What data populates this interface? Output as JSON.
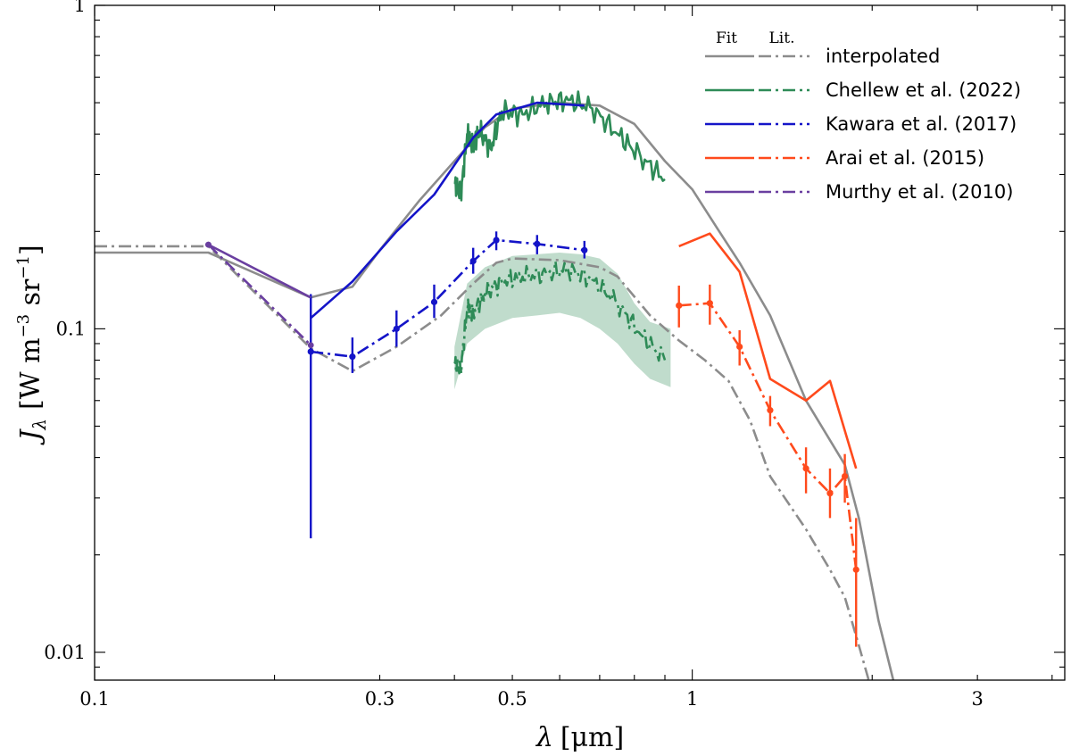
{
  "chart_data": {
    "type": "line",
    "xscale": "log",
    "yscale": "log",
    "xlim": [
      0.1,
      4.2
    ],
    "ylim": [
      0.0082,
      1.0
    ],
    "xlabel_var": "λ",
    "xlabel_unit": "[μm]",
    "ylabel_var": "J",
    "ylabel_sub": "λ",
    "ylabel_unit": "[W m",
    "ylabel_exp1": "−3",
    "ylabel_mid": " sr",
    "ylabel_exp2": "−1",
    "ylabel_end": "]",
    "x_ticks": [
      {
        "value": 0.1,
        "label": "0.1"
      },
      {
        "value": 0.3,
        "label": "0.3"
      },
      {
        "value": 0.5,
        "label": "0.5"
      },
      {
        "value": 1,
        "label": "1"
      },
      {
        "value": 3,
        "label": "3"
      }
    ],
    "y_ticks": [
      {
        "value": 0.01,
        "label": "0.01"
      },
      {
        "value": 0.1,
        "label": "0.1"
      },
      {
        "value": 1,
        "label": "1"
      }
    ],
    "legend": {
      "header_fit": "Fit",
      "header_lit": "Lit.",
      "placement": "top-right",
      "entries": [
        {
          "label": "interpolated",
          "color": "#8c8c8c"
        },
        {
          "label": "Chellew et al. (2022)",
          "color": "#2e8b57"
        },
        {
          "label": "Kawara et al. (2017)",
          "color": "#1414c8"
        },
        {
          "label": "Arai et al. (2015)",
          "color": "#ff4a1c"
        },
        {
          "label": "Murthy et al. (2010)",
          "color": "#6a3fa0"
        }
      ]
    },
    "series": [
      {
        "name": "interpolated (fit)",
        "color": "#8c8c8c",
        "style": "solid",
        "x": [
          0.1,
          0.155,
          0.23,
          0.27,
          0.3,
          0.35,
          0.4,
          0.45,
          0.5,
          0.6,
          0.7,
          0.8,
          0.9,
          1.0,
          1.1,
          1.2,
          1.35,
          1.55,
          1.8,
          1.9,
          2.05,
          2.2
        ],
        "y": [
          0.172,
          0.172,
          0.125,
          0.135,
          0.175,
          0.25,
          0.33,
          0.42,
          0.48,
          0.5,
          0.49,
          0.43,
          0.33,
          0.27,
          0.205,
          0.16,
          0.11,
          0.06,
          0.038,
          0.026,
          0.0125,
          0.0074
        ]
      },
      {
        "name": "interpolated (lit.)",
        "color": "#8c8c8c",
        "style": "dashdot",
        "x": [
          0.1,
          0.155,
          0.23,
          0.27,
          0.32,
          0.38,
          0.43,
          0.47,
          0.5,
          0.6,
          0.7,
          0.75,
          0.85,
          0.95,
          1.05,
          1.15,
          1.25,
          1.35,
          1.55,
          1.7,
          1.8,
          1.9,
          2.05
        ],
        "y": [
          0.18,
          0.18,
          0.087,
          0.074,
          0.088,
          0.11,
          0.138,
          0.16,
          0.165,
          0.163,
          0.155,
          0.145,
          0.11,
          0.092,
          0.08,
          0.069,
          0.052,
          0.035,
          0.024,
          0.018,
          0.0148,
          0.0105,
          0.0064
        ]
      },
      {
        "name": "Chellew et al. (2022) fit",
        "color": "#2e8b57",
        "style": "solid",
        "jitter": 0.04,
        "x": [
          0.4,
          0.41,
          0.42,
          0.43,
          0.44,
          0.46,
          0.48,
          0.52,
          0.57,
          0.62,
          0.68,
          0.75,
          0.82,
          0.9
        ],
        "y": [
          0.28,
          0.26,
          0.4,
          0.37,
          0.41,
          0.36,
          0.47,
          0.46,
          0.5,
          0.51,
          0.48,
          0.4,
          0.34,
          0.29
        ]
      },
      {
        "name": "Chellew et al. (2022) lit.",
        "color": "#2e8b57",
        "style": "dashdot",
        "jitter": 0.035,
        "x": [
          0.4,
          0.41,
          0.42,
          0.43,
          0.45,
          0.48,
          0.52,
          0.57,
          0.62,
          0.68,
          0.75,
          0.82,
          0.9
        ],
        "y": [
          0.078,
          0.075,
          0.115,
          0.112,
          0.128,
          0.14,
          0.145,
          0.148,
          0.152,
          0.142,
          0.12,
          0.096,
          0.08
        ]
      },
      {
        "name": "Kawara et al. (2017) fit",
        "color": "#1414c8",
        "style": "solid",
        "x": [
          0.23,
          0.27,
          0.32,
          0.37,
          0.43,
          0.47,
          0.55,
          0.66
        ],
        "y": [
          0.108,
          0.14,
          0.2,
          0.26,
          0.39,
          0.46,
          0.5,
          0.49
        ]
      },
      {
        "name": "Kawara et al. (2017) lit.",
        "color": "#1414c8",
        "style": "dashdot",
        "x": [
          0.23,
          0.27,
          0.32,
          0.37,
          0.43,
          0.47,
          0.55,
          0.66
        ],
        "y": [
          0.085,
          0.082,
          0.1,
          0.121,
          0.162,
          0.188,
          0.183,
          0.175
        ],
        "err_lo": [
          0.0225,
          0.073,
          0.088,
          0.108,
          0.148,
          0.175,
          0.17,
          0.165
        ],
        "err_hi": [
          0.128,
          0.094,
          0.114,
          0.137,
          0.178,
          0.2,
          0.195,
          0.187
        ]
      },
      {
        "name": "Arai et al. (2015) fit",
        "color": "#ff4a1c",
        "style": "solid",
        "x": [
          0.95,
          1.07,
          1.2,
          1.35,
          1.55,
          1.7,
          1.88
        ],
        "y": [
          0.18,
          0.197,
          0.15,
          0.07,
          0.06,
          0.069,
          0.037
        ]
      },
      {
        "name": "Arai et al. (2015) lit.",
        "color": "#ff4a1c",
        "style": "dashdot",
        "x": [
          0.95,
          1.07,
          1.2,
          1.35,
          1.55,
          1.7,
          1.8,
          1.88
        ],
        "y": [
          0.118,
          0.12,
          0.088,
          0.056,
          0.037,
          0.031,
          0.035,
          0.018
        ],
        "err_lo": [
          0.101,
          0.103,
          0.077,
          0.05,
          0.031,
          0.026,
          0.029,
          0.0104
        ],
        "err_hi": [
          0.136,
          0.137,
          0.099,
          0.062,
          0.043,
          0.037,
          0.041,
          0.026
        ]
      },
      {
        "name": "Murthy et al. (2010) fit",
        "color": "#6a3fa0",
        "style": "solid",
        "markers": "first",
        "x": [
          0.155,
          0.23
        ],
        "y": [
          0.182,
          0.125
        ]
      },
      {
        "name": "Murthy et al. (2010) lit.",
        "color": "#6a3fa0",
        "style": "dashdot",
        "markers": "both",
        "x": [
          0.155,
          0.23
        ],
        "y": [
          0.182,
          0.089
        ]
      }
    ],
    "bands": [
      {
        "name": "Chellew et al. (2022) uncertainty",
        "color": "#2e8b57",
        "opacity": 0.3,
        "x": [
          0.4,
          0.42,
          0.45,
          0.5,
          0.55,
          0.6,
          0.65,
          0.7,
          0.75,
          0.8,
          0.85,
          0.92
        ],
        "y_lo": [
          0.065,
          0.09,
          0.1,
          0.108,
          0.11,
          0.112,
          0.108,
          0.1,
          0.09,
          0.078,
          0.07,
          0.066
        ],
        "y_hi": [
          0.088,
          0.138,
          0.155,
          0.168,
          0.17,
          0.172,
          0.17,
          0.165,
          0.148,
          0.12,
          0.105,
          0.1
        ]
      }
    ]
  }
}
